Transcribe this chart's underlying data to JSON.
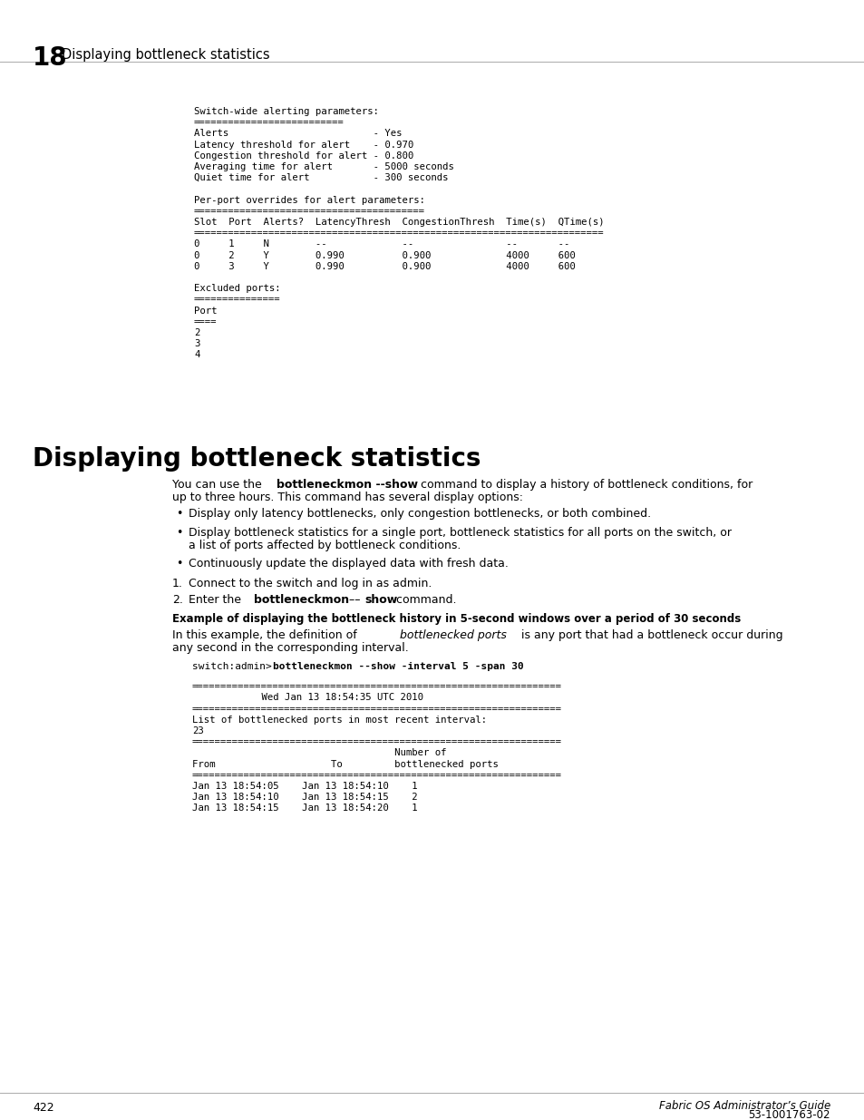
{
  "page_number": "422",
  "footer_right_line1": "Fabric OS Administrator’s Guide",
  "footer_right_line2": "53-1001763-02",
  "chapter_number": "18",
  "chapter_title": "Displaying bottleneck statistics",
  "section_title": "Displaying bottleneck statistics",
  "background_color": "#ffffff",
  "text_color": "#000000",
  "mono_block1": [
    "Switch-wide alerting parameters:",
    "==========================",
    "Alerts                         - Yes",
    "Latency threshold for alert    - 0.970",
    "Congestion threshold for alert - 0.800",
    "Averaging time for alert       - 5000 seconds",
    "Quiet time for alert           - 300 seconds",
    "",
    "Per-port overrides for alert parameters:",
    "========================================",
    "Slot  Port  Alerts?  LatencyThresh  CongestionThresh  Time(s)  QTime(s)",
    "=======================================================================",
    "0     1     N        --             --                --       --",
    "0     2     Y        0.990          0.900             4000     600",
    "0     3     Y        0.990          0.900             4000     600",
    "",
    "Excluded ports:",
    "===============",
    "Port",
    "====",
    "2",
    "3",
    "4"
  ],
  "mono_block2": [
    "================================================================",
    "            Wed Jan 13 18:54:35 UTC 2010",
    "================================================================",
    "List of bottlenecked ports in most recent interval:",
    "23",
    "================================================================",
    "                                   Number of",
    "From                    To         bottlenecked ports",
    "================================================================",
    "Jan 13 18:54:05    Jan 13 18:54:10    1",
    "Jan 13 18:54:10    Jan 13 18:54:15    2",
    "Jan 13 18:54:15    Jan 13 18:54:20    1"
  ]
}
